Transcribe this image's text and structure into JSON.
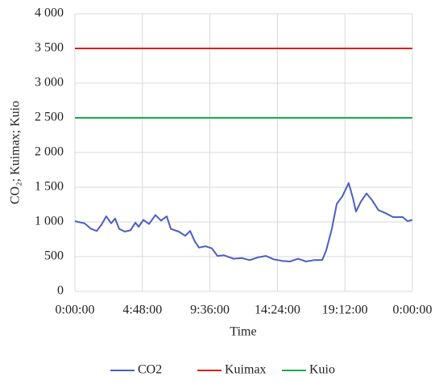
{
  "chart_data": {
    "type": "line",
    "x_label": "Time",
    "y_label": "CO₂; Kuimax; Kuio",
    "xlim": [
      0,
      24
    ],
    "xticks": [
      {
        "value": 0,
        "label": "0:00:00"
      },
      {
        "value": 4.8,
        "label": "4:48:00"
      },
      {
        "value": 9.6,
        "label": "9:36:00"
      },
      {
        "value": 14.4,
        "label": "14:24:00"
      },
      {
        "value": 19.2,
        "label": "19:12:00"
      },
      {
        "value": 24,
        "label": "0:00:00"
      }
    ],
    "ylim": [
      0,
      4000
    ],
    "yticks": [
      0,
      500,
      {
        "value": 1000,
        "label": "1 000"
      },
      {
        "value": 1500,
        "label": "1 500"
      },
      {
        "value": 2000,
        "label": "2 000"
      },
      {
        "value": 2500,
        "label": "2 500"
      },
      {
        "value": 3000,
        "label": "3 000"
      },
      {
        "value": 3500,
        "label": "3 500"
      },
      {
        "value": 4000,
        "label": "4 000"
      }
    ],
    "grid": true,
    "legend": "bottom",
    "series": [
      {
        "name": "CO2",
        "color": "#4a5fc1",
        "x": [
          0,
          0.69,
          1.15,
          1.55,
          1.89,
          2.23,
          2.58,
          2.86,
          3.15,
          3.55,
          3.95,
          4.3,
          4.53,
          4.87,
          5.27,
          5.73,
          6.13,
          6.53,
          6.82,
          7.39,
          7.85,
          8.19,
          8.53,
          8.82,
          9.28,
          9.74,
          10.14,
          10.6,
          11.28,
          11.86,
          12.43,
          13.0,
          13.58,
          14.15,
          14.72,
          15.29,
          15.87,
          16.44,
          17.01,
          17.59,
          17.87,
          18.27,
          18.62,
          19.02,
          19.47,
          19.76,
          19.99,
          20.33,
          20.74,
          21.14,
          21.59,
          22.05,
          22.63,
          23.31,
          23.66,
          24
        ],
        "values": [
          1010,
          980,
          900,
          870,
          960,
          1080,
          980,
          1050,
          900,
          860,
          880,
          990,
          930,
          1030,
          970,
          1100,
          1020,
          1080,
          900,
          860,
          800,
          870,
          720,
          630,
          650,
          620,
          510,
          520,
          470,
          480,
          450,
          490,
          510,
          460,
          440,
          430,
          470,
          430,
          450,
          450,
          590,
          900,
          1260,
          1370,
          1560,
          1350,
          1150,
          1290,
          1410,
          1310,
          1170,
          1130,
          1070,
          1070,
          1010,
          1030
        ]
      },
      {
        "name": "Kuimax",
        "color": "#e0201b",
        "x": [
          0,
          24
        ],
        "values": [
          3500,
          3500
        ]
      },
      {
        "name": "Kuio",
        "color": "#1aaa4a",
        "x": [
          0,
          24
        ],
        "values": [
          2500,
          2500
        ]
      }
    ]
  }
}
